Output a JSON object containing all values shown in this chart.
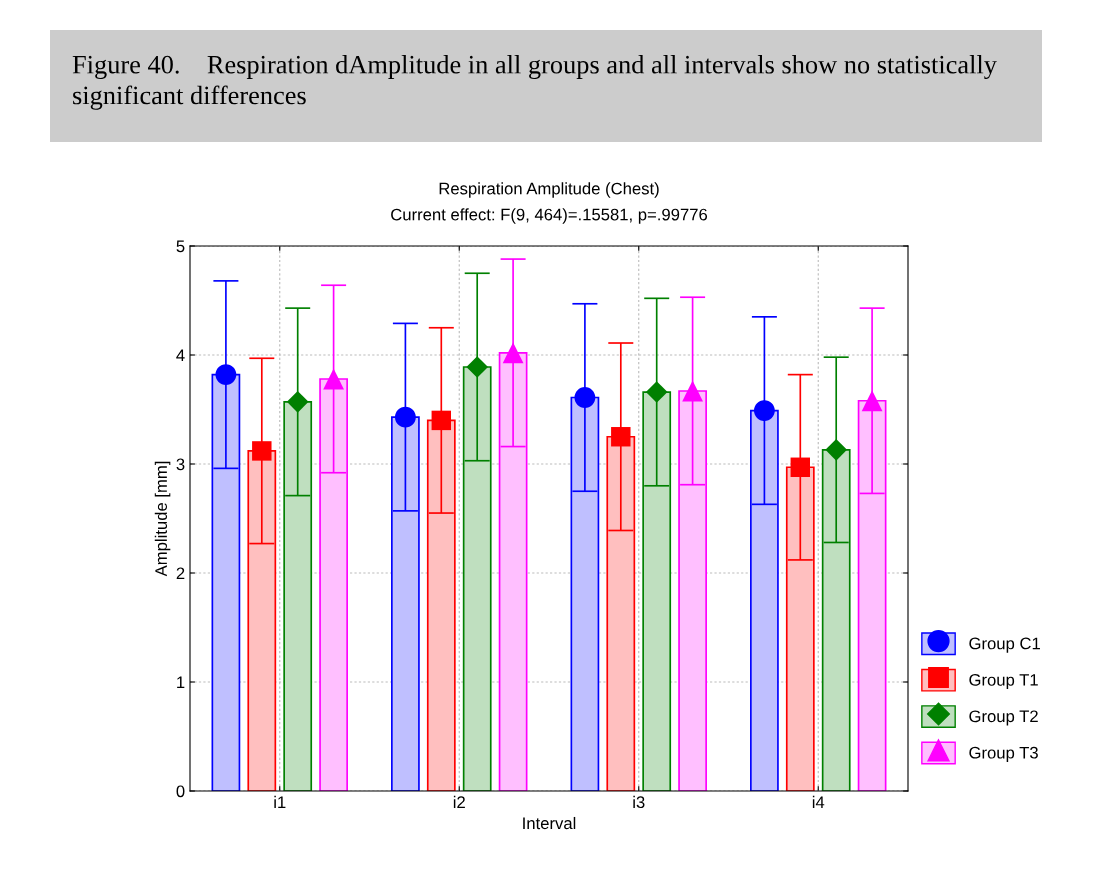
{
  "chart_data": {
    "type": "bar",
    "title": "Figure 40.    Respiration dAmplitude in all groups and all intervals show no statistically significant differences",
    "subtitle": "Respiration Amplitude (Chest)",
    "annotations": [
      "Current effect: F(9, 464)=.15581, p=.99776"
    ],
    "xlabel": "Interval",
    "ylabel": "Amplitude [mm]",
    "categories": [
      "i1",
      "i2",
      "i3",
      "i4"
    ],
    "series": [
      {
        "name": "Group C1",
        "color": "#bfbfff",
        "values": [
          3.82,
          3.43,
          3.61,
          3.49
        ]
      },
      {
        "name": "Group T1",
        "color": "#ffbfbf",
        "values": [
          3.12,
          3.4,
          3.25,
          2.97
        ]
      },
      {
        "name": "Group T2",
        "color": "#bfdfbf",
        "values": [
          3.57,
          3.89,
          3.66,
          3.13
        ]
      },
      {
        "name": "Group T3",
        "color": "#ffbfff",
        "values": [
          3.78,
          4.02,
          3.67,
          3.58
        ]
      },
      {
        "type": "scatter",
        "color": "#0000ff",
        "marker": "circle",
        "x": [
          "i1",
          "i2",
          "i3",
          "i4"
        ],
        "values": [
          3.82,
          3.43,
          3.61,
          3.49
        ],
        "errors": [
          0.86,
          0.86,
          0.86,
          0.86
        ]
      },
      {
        "type": "scatter",
        "color": "#ff0000",
        "marker": "square",
        "x": [
          "i1",
          "i2",
          "i3",
          "i4"
        ],
        "values": [
          3.12,
          3.4,
          3.25,
          2.97
        ],
        "errors": [
          0.85,
          0.85,
          0.86,
          0.85
        ]
      },
      {
        "type": "scatter",
        "color": "#008000",
        "marker": "diamond",
        "x": [
          "i1",
          "i2",
          "i3",
          "i4"
        ],
        "values": [
          3.57,
          3.89,
          3.66,
          3.13
        ],
        "errors": [
          0.86,
          0.86,
          0.86,
          0.85
        ]
      },
      {
        "type": "scatter",
        "color": "#ff00ff",
        "marker": "triangle",
        "x": [
          "i1",
          "i2",
          "i3",
          "i4"
        ],
        "values": [
          3.78,
          4.02,
          3.67,
          3.58
        ],
        "errors": [
          0.86,
          0.86,
          0.86,
          0.85
        ]
      }
    ],
    "ylim": [
      0,
      5
    ],
    "yticks": [
      0,
      1,
      2,
      3,
      4,
      5
    ],
    "grid": true,
    "legend": "right"
  }
}
